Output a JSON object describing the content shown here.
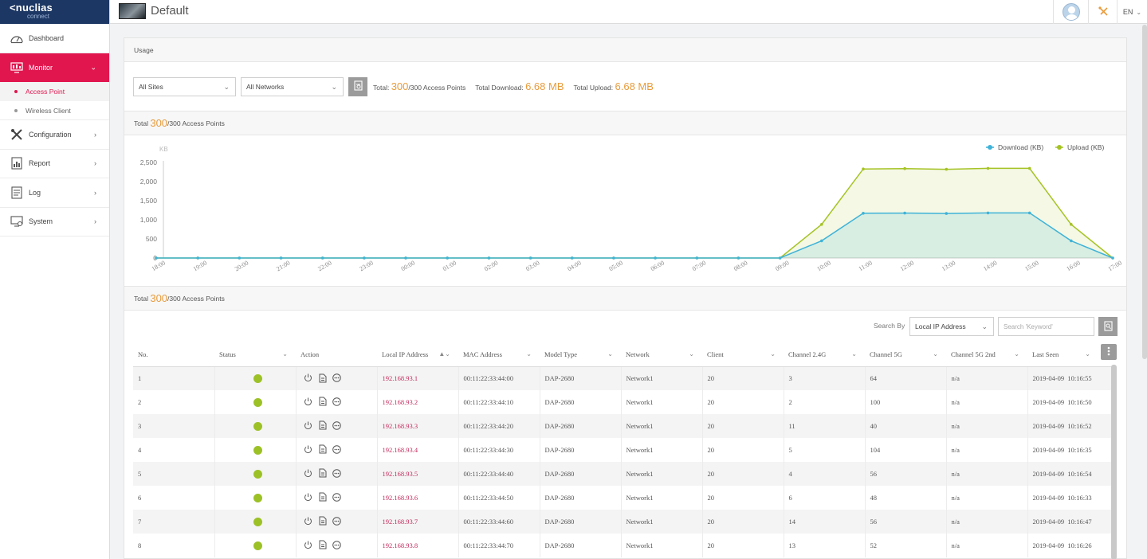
{
  "app": {
    "brand": "nuclias",
    "brand_sub": "connect",
    "site_title": "Default",
    "lang": "EN"
  },
  "sidebar": {
    "items": [
      {
        "label": "Dashboard",
        "icon": "dashboard-icon"
      },
      {
        "label": "Monitor",
        "icon": "monitor-icon"
      },
      {
        "label": "Configuration",
        "icon": "tools-icon"
      },
      {
        "label": "Report",
        "icon": "report-icon"
      },
      {
        "label": "Log",
        "icon": "log-icon"
      },
      {
        "label": "System",
        "icon": "system-icon"
      }
    ],
    "monitor_sub": [
      {
        "label": "Access Point"
      },
      {
        "label": "Wireless Client"
      }
    ]
  },
  "usage": {
    "section_title": "Usage",
    "sites_select": "All Sites",
    "networks_select": "All Networks",
    "total_label": "Total:",
    "total_value": "300",
    "total_suffix": "/300 Access Points",
    "download_label": "Total Download:",
    "download_value": "6.68 MB",
    "upload_label": "Total Upload:",
    "upload_value": "6.68 MB"
  },
  "chart_section": {
    "total_label": "Total",
    "total_value": "300",
    "total_suffix": "/300 Access Points"
  },
  "chart_data": {
    "type": "area",
    "ylabel": "KB",
    "ylim": [
      0,
      2500
    ],
    "yticks": [
      "0",
      "500",
      "1,000",
      "1,500",
      "2,000",
      "2,500"
    ],
    "x": [
      "18:00",
      "19:00",
      "20:00",
      "21:00",
      "22:00",
      "23:00",
      "00:00",
      "01:00",
      "02:00",
      "03:00",
      "04:00",
      "05:00",
      "06:00",
      "07:00",
      "08:00",
      "09:00",
      "10:00",
      "11:00",
      "12:00",
      "13:00",
      "14:00",
      "15:00",
      "16:00",
      "17:00"
    ],
    "series": [
      {
        "name": "Download (KB)",
        "color": "#3fb3d8",
        "values": [
          0,
          0,
          0,
          0,
          0,
          0,
          0,
          0,
          0,
          0,
          0,
          0,
          0,
          0,
          0,
          0,
          450,
          1170,
          1175,
          1165,
          1180,
          1180,
          450,
          0
        ]
      },
      {
        "name": "Upload (KB)",
        "color": "#a5c324",
        "values": [
          0,
          0,
          0,
          0,
          0,
          0,
          0,
          0,
          0,
          0,
          0,
          0,
          0,
          0,
          0,
          0,
          880,
          2330,
          2340,
          2320,
          2345,
          2345,
          880,
          0
        ]
      }
    ],
    "grid": false,
    "legend": "top-right"
  },
  "table_section": {
    "total_label": "Total",
    "total_value": "300",
    "total_suffix": "/300 Access Points"
  },
  "search": {
    "label": "Search By",
    "by_value": "Local IP Address",
    "placeholder": "Search 'Keyword'"
  },
  "table": {
    "columns": [
      "No.",
      "Status",
      "Action",
      "Local IP Address",
      "MAC Address",
      "Model Type",
      "Network",
      "Client",
      "Channel 2.4G",
      "Channel 5G",
      "Channel 5G 2nd",
      "Last Seen"
    ],
    "rows": [
      {
        "no": "1",
        "ip": "192.168.93.1",
        "mac": "00:11:22:33:44:00",
        "model": "DAP-2680",
        "network": "Network1",
        "client": "20",
        "ch24": "3",
        "ch5": "64",
        "ch5b": "n/a",
        "seen": "2019-04-09  10:16:55"
      },
      {
        "no": "2",
        "ip": "192.168.93.2",
        "mac": "00:11:22:33:44:10",
        "model": "DAP-2680",
        "network": "Network1",
        "client": "20",
        "ch24": "2",
        "ch5": "100",
        "ch5b": "n/a",
        "seen": "2019-04-09  10:16:50"
      },
      {
        "no": "3",
        "ip": "192.168.93.3",
        "mac": "00:11:22:33:44:20",
        "model": "DAP-2680",
        "network": "Network1",
        "client": "20",
        "ch24": "11",
        "ch5": "40",
        "ch5b": "n/a",
        "seen": "2019-04-09  10:16:52"
      },
      {
        "no": "4",
        "ip": "192.168.93.4",
        "mac": "00:11:22:33:44:30",
        "model": "DAP-2680",
        "network": "Network1",
        "client": "20",
        "ch24": "5",
        "ch5": "104",
        "ch5b": "n/a",
        "seen": "2019-04-09  10:16:35"
      },
      {
        "no": "5",
        "ip": "192.168.93.5",
        "mac": "00:11:22:33:44:40",
        "model": "DAP-2680",
        "network": "Network1",
        "client": "20",
        "ch24": "4",
        "ch5": "56",
        "ch5b": "n/a",
        "seen": "2019-04-09  10:16:54"
      },
      {
        "no": "6",
        "ip": "192.168.93.6",
        "mac": "00:11:22:33:44:50",
        "model": "DAP-2680",
        "network": "Network1",
        "client": "20",
        "ch24": "6",
        "ch5": "48",
        "ch5b": "n/a",
        "seen": "2019-04-09  10:16:33"
      },
      {
        "no": "7",
        "ip": "192.168.93.7",
        "mac": "00:11:22:33:44:60",
        "model": "DAP-2680",
        "network": "Network1",
        "client": "20",
        "ch24": "14",
        "ch5": "56",
        "ch5b": "n/a",
        "seen": "2019-04-09  10:16:47"
      },
      {
        "no": "8",
        "ip": "192.168.93.8",
        "mac": "00:11:22:33:44:70",
        "model": "DAP-2680",
        "network": "Network1",
        "client": "20",
        "ch24": "13",
        "ch5": "52",
        "ch5b": "n/a",
        "seen": "2019-04-09  10:16:26"
      }
    ]
  }
}
